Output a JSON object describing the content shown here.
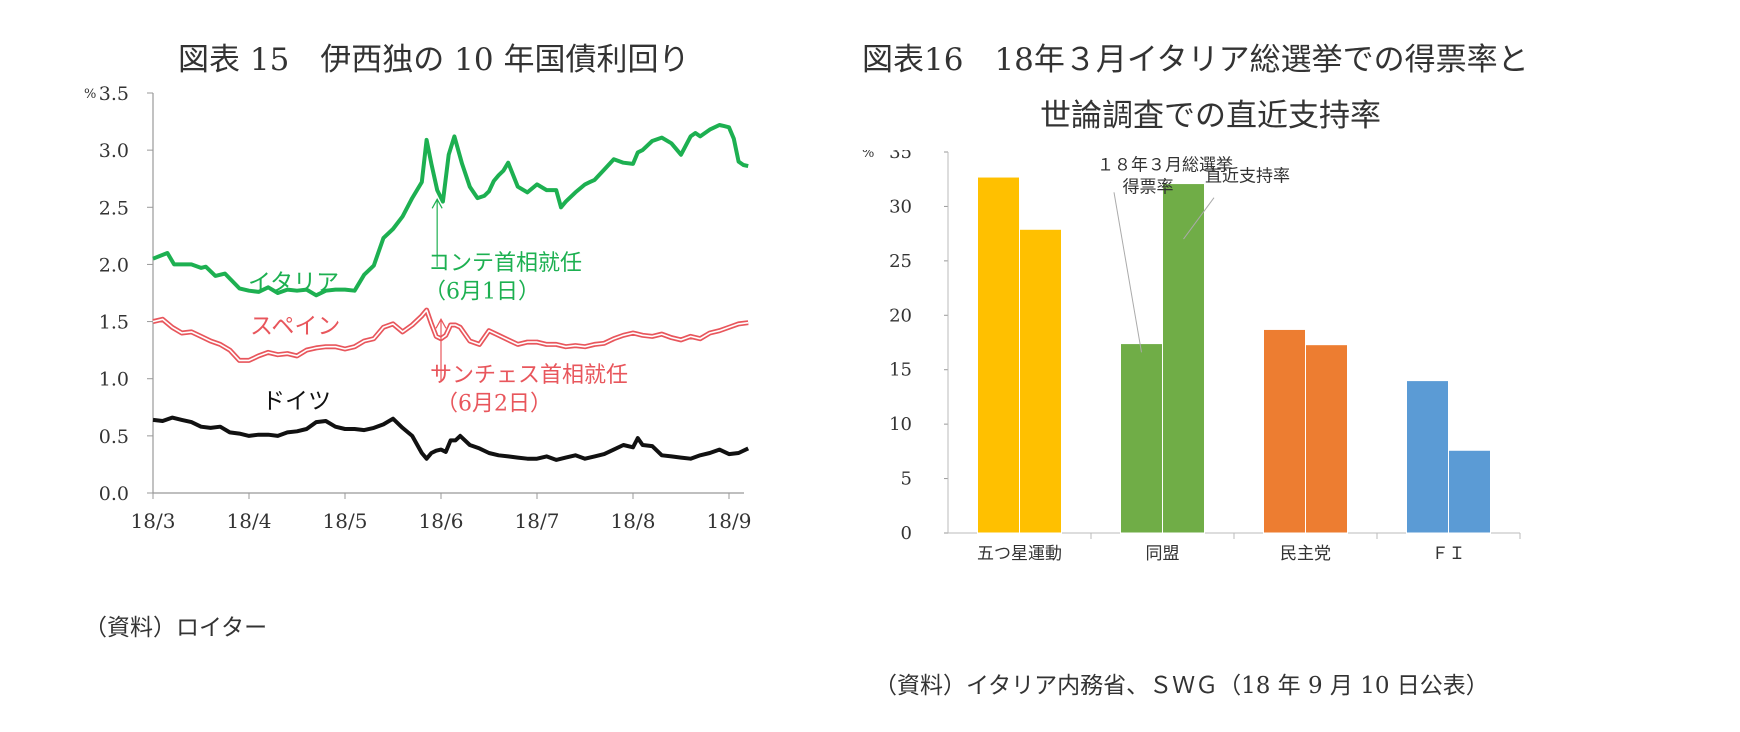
{
  "left": {
    "title": "図表 15　伊西独の 10 年国債利回り",
    "source": "（資料）ロイター",
    "chart_data": {
      "type": "line",
      "title": "図表 15　伊西独の 10 年国債利回り",
      "ylabel": "%",
      "ylim": [
        0,
        3.5
      ],
      "yticks": [
        "0.0",
        "0.5",
        "1.0",
        "1.5",
        "2.0",
        "2.5",
        "3.0",
        "3.5"
      ],
      "xlim": [
        0,
        6.25
      ],
      "xticks": [
        "18/3",
        "18/4",
        "18/5",
        "18/6",
        "18/7",
        "18/8",
        "18/9"
      ],
      "series": [
        {
          "name": "イタリア",
          "color": "#1db051",
          "x": [
            0,
            0.15,
            0.22,
            0.4,
            0.5,
            0.55,
            0.65,
            0.75,
            0.9,
            1.0,
            1.1,
            1.2,
            1.3,
            1.4,
            1.5,
            1.6,
            1.7,
            1.8,
            1.9,
            2.0,
            2.1,
            2.2,
            2.3,
            2.4,
            2.5,
            2.6,
            2.7,
            2.8,
            2.85,
            2.9,
            2.96,
            3.02,
            3.08,
            3.14,
            3.22,
            3.3,
            3.38,
            3.45,
            3.5,
            3.55,
            3.6,
            3.65,
            3.7,
            3.8,
            3.9,
            4.0,
            4.1,
            4.2,
            4.25,
            4.3,
            4.4,
            4.5,
            4.55,
            4.6,
            4.7,
            4.8,
            4.9,
            5.0,
            5.05,
            5.1,
            5.2,
            5.3,
            5.4,
            5.5,
            5.6,
            5.65,
            5.7,
            5.8,
            5.9,
            5.95,
            6.0,
            6.05,
            6.1,
            6.15,
            6.2
          ],
          "values": [
            2.05,
            2.1,
            2.0,
            2.0,
            1.97,
            1.98,
            1.9,
            1.92,
            1.79,
            1.77,
            1.76,
            1.8,
            1.75,
            1.78,
            1.77,
            1.78,
            1.73,
            1.77,
            1.78,
            1.78,
            1.77,
            1.91,
            1.99,
            2.23,
            2.31,
            2.42,
            2.58,
            2.72,
            3.09,
            2.88,
            2.65,
            2.55,
            2.96,
            3.12,
            2.88,
            2.68,
            2.58,
            2.6,
            2.64,
            2.73,
            2.78,
            2.82,
            2.89,
            2.68,
            2.63,
            2.7,
            2.65,
            2.65,
            2.5,
            2.55,
            2.63,
            2.7,
            2.72,
            2.74,
            2.83,
            2.92,
            2.89,
            2.88,
            2.98,
            3.0,
            3.08,
            3.11,
            3.06,
            2.96,
            3.12,
            3.15,
            3.12,
            3.18,
            3.22,
            3.21,
            3.2,
            3.1,
            2.9,
            2.87,
            2.86
          ]
        },
        {
          "name": "スペイン",
          "color": "#e8565c",
          "x": [
            0,
            0.1,
            0.2,
            0.3,
            0.4,
            0.5,
            0.6,
            0.7,
            0.8,
            0.9,
            1.0,
            1.1,
            1.2,
            1.3,
            1.4,
            1.5,
            1.6,
            1.7,
            1.8,
            1.9,
            2.0,
            2.1,
            2.2,
            2.3,
            2.4,
            2.5,
            2.6,
            2.7,
            2.8,
            2.85,
            2.9,
            2.95,
            3.0,
            3.05,
            3.1,
            3.15,
            3.2,
            3.3,
            3.4,
            3.5,
            3.6,
            3.7,
            3.8,
            3.9,
            4.0,
            4.1,
            4.2,
            4.3,
            4.4,
            4.5,
            4.6,
            4.7,
            4.8,
            4.9,
            5.0,
            5.1,
            5.2,
            5.3,
            5.4,
            5.5,
            5.6,
            5.7,
            5.8,
            5.9,
            6.0,
            6.1,
            6.2
          ],
          "values": [
            1.5,
            1.52,
            1.45,
            1.4,
            1.41,
            1.37,
            1.33,
            1.3,
            1.25,
            1.16,
            1.16,
            1.2,
            1.23,
            1.21,
            1.22,
            1.2,
            1.25,
            1.27,
            1.28,
            1.28,
            1.26,
            1.28,
            1.33,
            1.35,
            1.45,
            1.48,
            1.41,
            1.47,
            1.55,
            1.6,
            1.48,
            1.37,
            1.35,
            1.38,
            1.47,
            1.47,
            1.45,
            1.33,
            1.3,
            1.42,
            1.38,
            1.34,
            1.3,
            1.32,
            1.32,
            1.3,
            1.3,
            1.28,
            1.29,
            1.28,
            1.3,
            1.31,
            1.35,
            1.38,
            1.4,
            1.38,
            1.37,
            1.39,
            1.36,
            1.34,
            1.37,
            1.35,
            1.4,
            1.42,
            1.45,
            1.48,
            1.49
          ]
        },
        {
          "name": "ドイツ",
          "color": "#111111",
          "x": [
            0,
            0.1,
            0.2,
            0.3,
            0.4,
            0.5,
            0.6,
            0.7,
            0.8,
            0.9,
            1.0,
            1.1,
            1.2,
            1.3,
            1.4,
            1.5,
            1.6,
            1.7,
            1.8,
            1.9,
            2.0,
            2.1,
            2.2,
            2.3,
            2.4,
            2.5,
            2.6,
            2.7,
            2.8,
            2.85,
            2.9,
            2.95,
            3.0,
            3.05,
            3.1,
            3.15,
            3.2,
            3.3,
            3.4,
            3.5,
            3.6,
            3.7,
            3.8,
            3.9,
            4.0,
            4.1,
            4.2,
            4.3,
            4.4,
            4.5,
            4.6,
            4.7,
            4.8,
            4.9,
            5.0,
            5.05,
            5.1,
            5.2,
            5.3,
            5.4,
            5.5,
            5.6,
            5.7,
            5.8,
            5.9,
            6.0,
            6.1,
            6.2
          ],
          "values": [
            0.64,
            0.63,
            0.66,
            0.64,
            0.62,
            0.58,
            0.57,
            0.58,
            0.53,
            0.52,
            0.5,
            0.51,
            0.51,
            0.5,
            0.53,
            0.54,
            0.56,
            0.62,
            0.63,
            0.58,
            0.56,
            0.56,
            0.55,
            0.57,
            0.6,
            0.65,
            0.57,
            0.5,
            0.35,
            0.3,
            0.35,
            0.37,
            0.38,
            0.36,
            0.46,
            0.46,
            0.5,
            0.42,
            0.39,
            0.35,
            0.33,
            0.32,
            0.31,
            0.3,
            0.3,
            0.32,
            0.29,
            0.31,
            0.33,
            0.3,
            0.32,
            0.34,
            0.38,
            0.42,
            0.4,
            0.48,
            0.42,
            0.41,
            0.33,
            0.32,
            0.31,
            0.3,
            0.33,
            0.35,
            0.38,
            0.34,
            0.35,
            0.39
          ]
        }
      ],
      "annotations": {
        "italy_label": "イタリア",
        "spain_label": "スペイン",
        "germany_label": "ドイツ",
        "conte_line1": "コンテ首相就任",
        "conte_line2": "（6月1日）",
        "sanchez_line1": "サンチェス首相就任",
        "sanchez_line2": "（6月2日）"
      }
    }
  },
  "right": {
    "title_line1": "図表16　18年３月イタリア総選挙での得票率と",
    "title_line2": "世論調査での直近支持率",
    "source": "（資料）イタリア内務省、ＳＷＧ（18 年 9 月 10 日公表）",
    "chart_data": {
      "type": "bar",
      "ylabel": "%",
      "ylim": [
        0,
        35
      ],
      "yticks": [
        "0",
        "5",
        "10",
        "15",
        "20",
        "25",
        "30",
        "35"
      ],
      "categories": [
        "五つ星運動",
        "同盟",
        "民主党",
        "ＦＩ"
      ],
      "colors": [
        "#ffc000",
        "#70ad47",
        "#ed7d31",
        "#5b9bd5"
      ],
      "series": [
        {
          "name": "１８年３月総選挙得票率",
          "values": [
            32.7,
            17.4,
            18.7,
            14.0
          ]
        },
        {
          "name": "直近支持率",
          "values": [
            27.9,
            32.1,
            17.3,
            7.6
          ]
        }
      ],
      "annotations": {
        "election_line1": "１８年３月総選挙",
        "election_line2": "得票率",
        "poll_label": "直近支持率"
      }
    }
  }
}
